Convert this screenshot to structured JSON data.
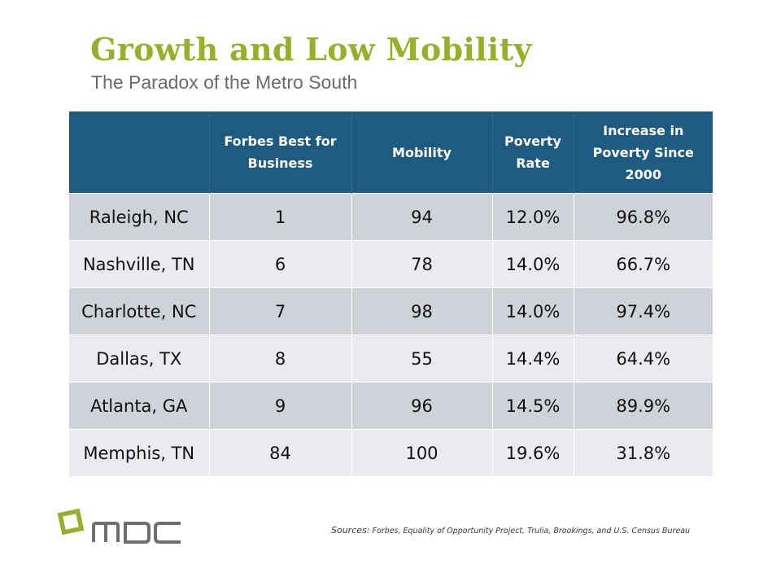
{
  "slide": {
    "title": "Growth and Low Mobility",
    "subtitle": "The Paradox of the Metro South"
  },
  "table": {
    "headers": [
      "",
      "Forbes Best for Business",
      "Mobility",
      "Poverty Rate",
      "Increase in Poverty Since 2000"
    ],
    "rows": [
      [
        "Raleigh, NC",
        "1",
        "94",
        "12.0%",
        "96.8%"
      ],
      [
        "Nashville, TN",
        "6",
        "78",
        "14.0%",
        "66.7%"
      ],
      [
        "Charlotte, NC",
        "7",
        "98",
        "14.0%",
        "97.4%"
      ],
      [
        "Dallas, TX",
        "8",
        "55",
        "14.4%",
        "64.4%"
      ],
      [
        "Atlanta, GA",
        "9",
        "96",
        "14.5%",
        "89.9%"
      ],
      [
        "Memphis, TN",
        "84",
        "100",
        "19.6%",
        "31.8%"
      ]
    ]
  },
  "footer": {
    "logo_text": "MDC",
    "sources_lead": "Sources:",
    "sources_text": "Forbes, Equality of Opportunity Project, Trulia, Brookings, and U.S. Census Bureau"
  },
  "colors": {
    "title": "#9aae2c",
    "header_bg": "#1f5a80",
    "row_dark": "#cfd2d9",
    "row_light": "#e9ebef",
    "logo_gray": "#6d6e71"
  }
}
